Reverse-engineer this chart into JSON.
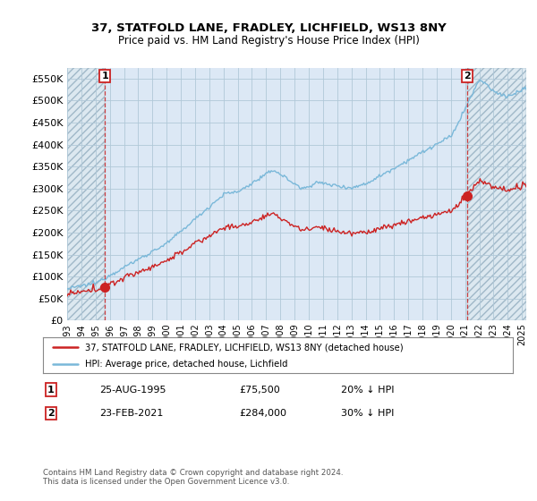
{
  "title": "37, STATFOLD LANE, FRADLEY, LICHFIELD, WS13 8NY",
  "subtitle": "Price paid vs. HM Land Registry's House Price Index (HPI)",
  "ylim": [
    0,
    575000
  ],
  "yticks": [
    0,
    50000,
    100000,
    150000,
    200000,
    250000,
    300000,
    350000,
    400000,
    450000,
    500000,
    550000
  ],
  "xlim_start": 1993.0,
  "xlim_end": 2025.3,
  "sale1_date": 1995.65,
  "sale1_price": 75500,
  "sale2_date": 2021.13,
  "sale2_price": 284000,
  "hpi_color": "#7ab8d9",
  "price_color": "#cc2222",
  "legend_label1": "37, STATFOLD LANE, FRADLEY, LICHFIELD, WS13 8NY (detached house)",
  "legend_label2": "HPI: Average price, detached house, Lichfield",
  "footnote": "Contains HM Land Registry data © Crown copyright and database right 2024.\nThis data is licensed under the Open Government Licence v3.0.",
  "hatch_color": "#dce8f0",
  "plot_bg": "#dce8f5",
  "grid_color": "#b0c8d8",
  "title_fontsize": 9.5,
  "subtitle_fontsize": 8.5
}
